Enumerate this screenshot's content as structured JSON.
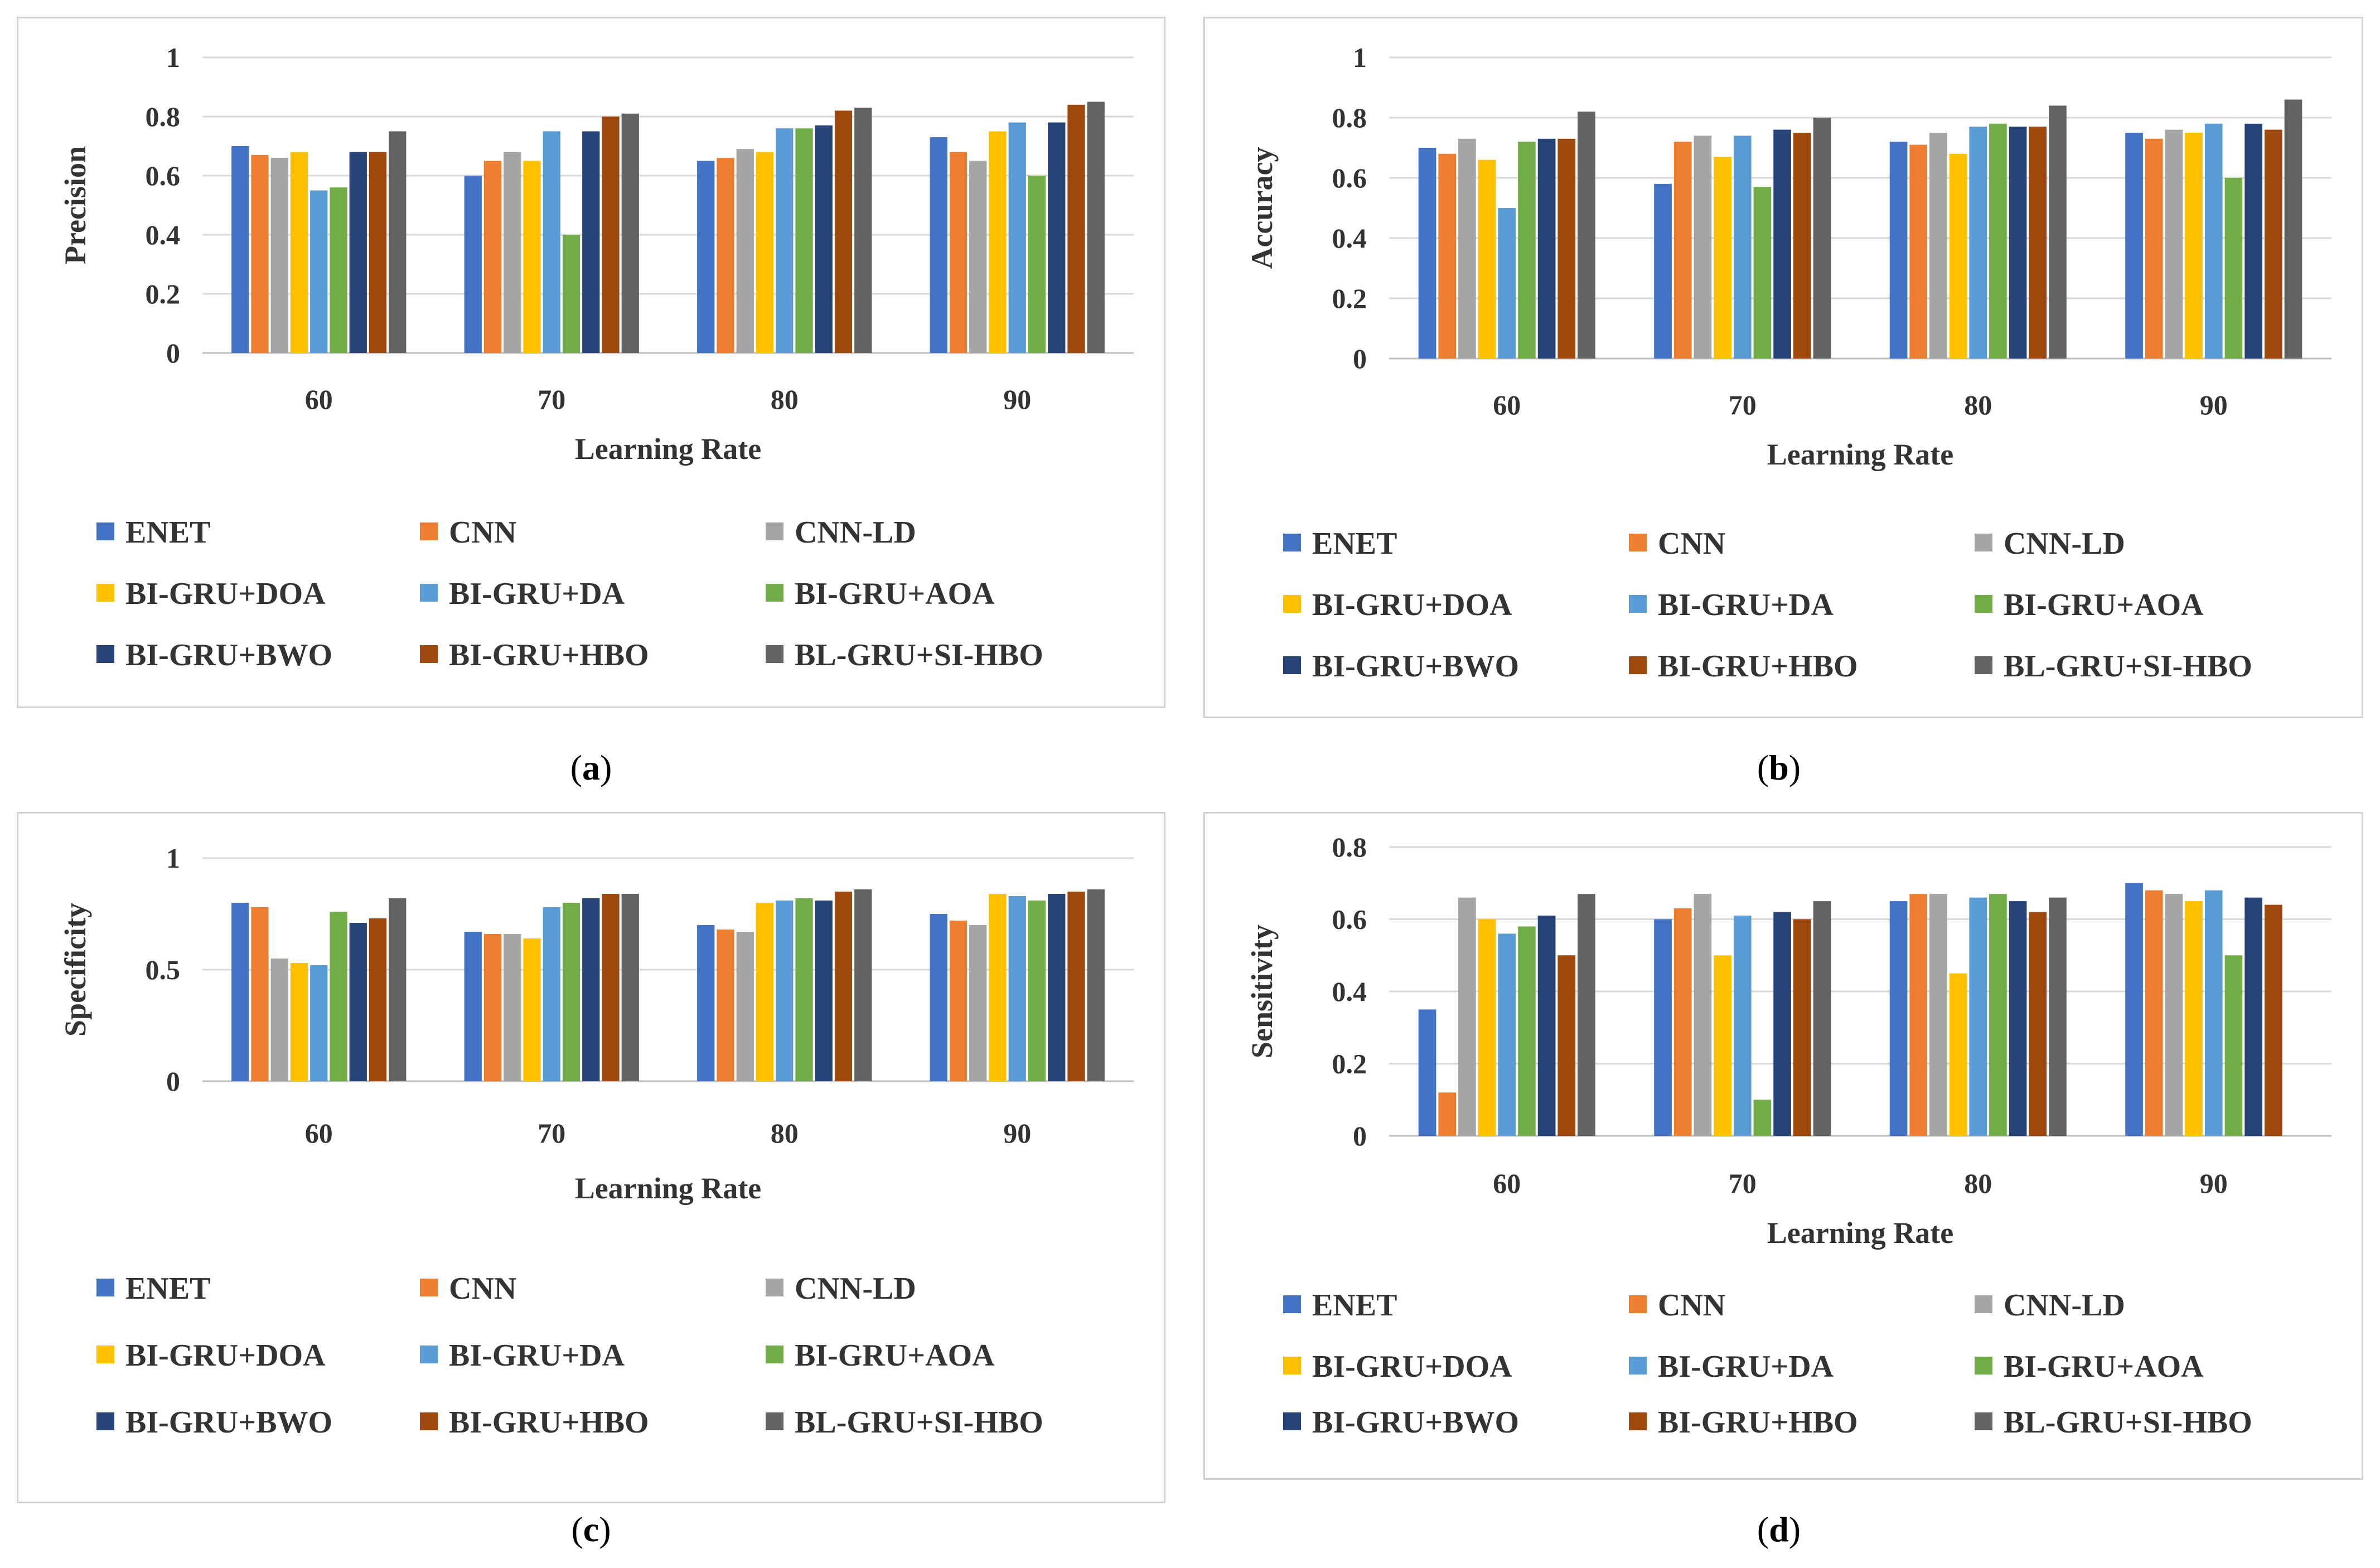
{
  "colors": [
    "#4472c4",
    "#ed7d31",
    "#a5a5a5",
    "#ffc000",
    "#5b9bd5",
    "#70ad47",
    "#264478",
    "#9e480e",
    "#636363"
  ],
  "chart_data": [
    {
      "type": "bar",
      "caption": "a",
      "categories": [
        "60",
        "70",
        "80",
        "90"
      ],
      "xlabel": "Learning Rate",
      "ylabel": "Precision",
      "ylim": [
        0,
        1
      ],
      "yticks": [
        "0",
        "0.2",
        "0.4",
        "0.6",
        "0.8",
        "1"
      ],
      "ytick_values": [
        0,
        0.2,
        0.4,
        0.6,
        0.8,
        1
      ],
      "grid": true,
      "legend_position": "bottom",
      "series": [
        {
          "name": "ENET",
          "values": [
            0.7,
            0.6,
            0.65,
            0.73
          ]
        },
        {
          "name": "CNN",
          "values": [
            0.67,
            0.65,
            0.66,
            0.68
          ]
        },
        {
          "name": "CNN-LD",
          "values": [
            0.66,
            0.68,
            0.69,
            0.65
          ]
        },
        {
          "name": "BI-GRU+DOA",
          "values": [
            0.68,
            0.65,
            0.68,
            0.75
          ]
        },
        {
          "name": "BI-GRU+DA",
          "values": [
            0.55,
            0.75,
            0.76,
            0.78
          ]
        },
        {
          "name": "BI-GRU+AOA",
          "values": [
            0.56,
            0.4,
            0.76,
            0.6
          ]
        },
        {
          "name": "BI-GRU+BWO",
          "values": [
            0.68,
            0.75,
            0.77,
            0.78
          ]
        },
        {
          "name": "BI-GRU+HBO",
          "values": [
            0.68,
            0.8,
            0.82,
            0.84
          ]
        },
        {
          "name": "BL-GRU+SI-HBO",
          "values": [
            0.75,
            0.81,
            0.83,
            0.85
          ]
        }
      ]
    },
    {
      "type": "bar",
      "caption": "b",
      "categories": [
        "60",
        "70",
        "80",
        "90"
      ],
      "xlabel": "Learning Rate",
      "ylabel": "Accuracy",
      "ylim": [
        0,
        1
      ],
      "yticks": [
        "0",
        "0.2",
        "0.4",
        "0.6",
        "0.8",
        "1"
      ],
      "ytick_values": [
        0,
        0.2,
        0.4,
        0.6,
        0.8,
        1
      ],
      "grid": true,
      "legend_position": "bottom",
      "series": [
        {
          "name": "ENET",
          "values": [
            0.7,
            0.58,
            0.72,
            0.75
          ]
        },
        {
          "name": "CNN",
          "values": [
            0.68,
            0.72,
            0.71,
            0.73
          ]
        },
        {
          "name": "CNN-LD",
          "values": [
            0.73,
            0.74,
            0.75,
            0.76
          ]
        },
        {
          "name": "BI-GRU+DOA",
          "values": [
            0.66,
            0.67,
            0.68,
            0.75
          ]
        },
        {
          "name": "BI-GRU+DA",
          "values": [
            0.5,
            0.74,
            0.77,
            0.78
          ]
        },
        {
          "name": "BI-GRU+AOA",
          "values": [
            0.72,
            0.57,
            0.78,
            0.6
          ]
        },
        {
          "name": "BI-GRU+BWO",
          "values": [
            0.73,
            0.76,
            0.77,
            0.78
          ]
        },
        {
          "name": "BI-GRU+HBO",
          "values": [
            0.73,
            0.75,
            0.77,
            0.76
          ]
        },
        {
          "name": "BL-GRU+SI-HBO",
          "values": [
            0.82,
            0.8,
            0.84,
            0.86
          ]
        }
      ]
    },
    {
      "type": "bar",
      "caption": "c",
      "categories": [
        "60",
        "70",
        "80",
        "90"
      ],
      "xlabel": "Learning Rate",
      "ylabel": "Specificity",
      "ylim": [
        0,
        1
      ],
      "yticks": [
        "0",
        "0.5",
        "1"
      ],
      "ytick_values": [
        0,
        0.5,
        1
      ],
      "grid": true,
      "legend_position": "bottom",
      "series": [
        {
          "name": "ENET",
          "values": [
            0.8,
            0.67,
            0.7,
            0.75
          ]
        },
        {
          "name": "CNN",
          "values": [
            0.78,
            0.66,
            0.68,
            0.72
          ]
        },
        {
          "name": "CNN-LD",
          "values": [
            0.55,
            0.66,
            0.67,
            0.7
          ]
        },
        {
          "name": "BI-GRU+DOA",
          "values": [
            0.53,
            0.64,
            0.8,
            0.84
          ]
        },
        {
          "name": "BI-GRU+DA",
          "values": [
            0.52,
            0.78,
            0.81,
            0.83
          ]
        },
        {
          "name": "BI-GRU+AOA",
          "values": [
            0.76,
            0.8,
            0.82,
            0.81
          ]
        },
        {
          "name": "BI-GRU+BWO",
          "values": [
            0.71,
            0.82,
            0.81,
            0.84
          ]
        },
        {
          "name": "BI-GRU+HBO",
          "values": [
            0.73,
            0.84,
            0.85,
            0.85
          ]
        },
        {
          "name": "BL-GRU+SI-HBO",
          "values": [
            0.82,
            0.84,
            0.86,
            0.86
          ]
        }
      ]
    },
    {
      "type": "bar",
      "caption": "d",
      "categories": [
        "60",
        "70",
        "80",
        "90"
      ],
      "xlabel": "Learning Rate",
      "ylabel": "Sensitivity",
      "ylim": [
        0,
        0.8
      ],
      "yticks": [
        "0",
        "0.2",
        "0.4",
        "0.6",
        "0.8"
      ],
      "ytick_values": [
        0,
        0.2,
        0.4,
        0.6,
        0.8
      ],
      "grid": true,
      "legend_position": "bottom",
      "series": [
        {
          "name": "ENET",
          "values": [
            0.35,
            0.6,
            0.65,
            0.7
          ]
        },
        {
          "name": "CNN",
          "values": [
            0.12,
            0.63,
            0.67,
            0.68
          ]
        },
        {
          "name": "CNN-LD",
          "values": [
            0.66,
            0.67,
            0.67,
            0.67
          ]
        },
        {
          "name": "BI-GRU+DOA",
          "values": [
            0.6,
            0.5,
            0.45,
            0.65
          ]
        },
        {
          "name": "BI-GRU+DA",
          "values": [
            0.56,
            0.61,
            0.66,
            0.68
          ]
        },
        {
          "name": "BI-GRU+AOA",
          "values": [
            0.58,
            0.1,
            0.67,
            0.5
          ]
        },
        {
          "name": "BI-GRU+BWO",
          "values": [
            0.61,
            0.62,
            0.65,
            0.66
          ]
        },
        {
          "name": "BI-GRU+HBO",
          "values": [
            0.5,
            0.6,
            0.62,
            0.64
          ]
        },
        {
          "name": "BL-GRU+SI-HBO",
          "values": [
            0.67,
            0.65,
            0.66,
            null
          ]
        }
      ]
    }
  ]
}
